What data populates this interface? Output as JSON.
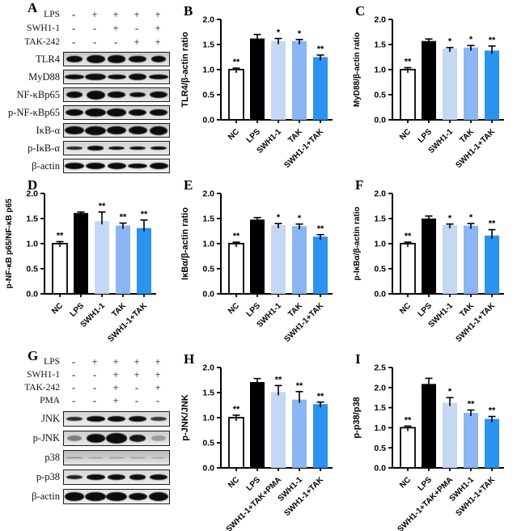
{
  "figure": {
    "background": "#ffffff",
    "bar_colors": [
      "#ffffff",
      "#000000",
      "#c4d7f3",
      "#8ab6f3",
      "#2b92ee"
    ],
    "axis_color": "#000000",
    "error_bar_color": "#000000"
  },
  "panels": {
    "A": {
      "letter": "A",
      "treatments": [
        {
          "label": "LPS",
          "signs": [
            "-",
            "+",
            "+",
            "+",
            "+"
          ]
        },
        {
          "label": "SWH1-1",
          "signs": [
            "-",
            "-",
            "+",
            "-",
            "+"
          ]
        },
        {
          "label": "TAK-242",
          "signs": [
            "-",
            "-",
            "-",
            "+",
            "+"
          ]
        }
      ],
      "blots": [
        {
          "label": "TLR4",
          "bg": "#c6c6c6",
          "bands": [
            [
              0.9,
              0.8,
              1
            ],
            [
              1,
              0.95,
              1
            ],
            [
              0.92,
              0.85,
              1
            ],
            [
              0.92,
              0.8,
              1
            ],
            [
              0.82,
              0.75,
              1
            ]
          ]
        },
        {
          "label": "MyD88",
          "bg": "#cfcfcf",
          "bands": [
            [
              1.08,
              0.62,
              1
            ],
            [
              1.12,
              0.78,
              1
            ],
            [
              1,
              0.58,
              1
            ],
            [
              0.95,
              0.8,
              1
            ],
            [
              1.02,
              0.58,
              1
            ]
          ]
        },
        {
          "label": "NF-κBp65",
          "bg": "#c9c9c9",
          "bands": [
            [
              0.9,
              0.72,
              1
            ],
            [
              1,
              1,
              1
            ],
            [
              0.95,
              0.68,
              1
            ],
            [
              0.9,
              0.6,
              1
            ],
            [
              0.95,
              0.72,
              1
            ]
          ]
        },
        {
          "label": "p-NF-κBp65",
          "bg": "#cccccc",
          "bands": [
            [
              0.95,
              0.72,
              1
            ],
            [
              1.12,
              0.95,
              1
            ],
            [
              1.05,
              0.85,
              1
            ],
            [
              0.95,
              0.72,
              1
            ],
            [
              0.95,
              0.78,
              1
            ]
          ]
        },
        {
          "label": "IκB-α",
          "bg": "#c4c4c4",
          "bands": [
            [
              1.05,
              0.95,
              1
            ],
            [
              1.12,
              1,
              1
            ],
            [
              1.05,
              0.95,
              1
            ],
            [
              1,
              0.9,
              1
            ],
            [
              0.95,
              1,
              1
            ]
          ]
        },
        {
          "label": "p-IκB-α",
          "bg": "#d2d2d2",
          "bands": [
            [
              0.9,
              0.32,
              0.9
            ],
            [
              0.9,
              0.5,
              1
            ],
            [
              0.85,
              0.4,
              1
            ],
            [
              0.85,
              0.4,
              1
            ],
            [
              0.85,
              0.45,
              1
            ]
          ]
        },
        {
          "label": "β-actin",
          "bg": "#e3e3e3",
          "bands": [
            [
              1.05,
              0.7,
              1
            ],
            [
              1.08,
              0.75,
              1
            ],
            [
              1,
              0.7,
              1
            ],
            [
              1.05,
              0.62,
              1
            ],
            [
              1,
              0.7,
              1
            ]
          ]
        }
      ]
    },
    "B": {
      "letter": "B",
      "chart_index": 0
    },
    "C": {
      "letter": "C",
      "chart_index": 1
    },
    "D": {
      "letter": "D",
      "chart_index": 2
    },
    "E": {
      "letter": "E",
      "chart_index": 3
    },
    "F": {
      "letter": "F",
      "chart_index": 4
    },
    "G": {
      "letter": "G",
      "treatments": [
        {
          "label": "LPS",
          "signs": [
            "-",
            "+",
            "+",
            "+",
            "+"
          ]
        },
        {
          "label": "SWH1-1",
          "signs": [
            "-",
            "-",
            "+",
            "+",
            "+"
          ]
        },
        {
          "label": "TAK-242",
          "signs": [
            "-",
            "-",
            "+",
            "-",
            "+"
          ]
        },
        {
          "label": "PMA",
          "signs": [
            "-",
            "-",
            "+",
            "-",
            "-"
          ]
        }
      ],
      "blots": [
        {
          "label": "JNK",
          "bg": "#d5d5d5",
          "bands": [
            [
              0.85,
              0.5,
              0.85
            ],
            [
              1,
              0.7,
              1
            ],
            [
              0.95,
              0.62,
              1
            ],
            [
              0.95,
              0.68,
              1
            ],
            [
              0.85,
              0.5,
              0.8
            ]
          ]
        },
        {
          "label": "p-JNK",
          "bg": "#cdcdcd",
          "bands": [
            [
              0.8,
              0.6,
              0.45
            ],
            [
              1,
              0.95,
              1
            ],
            [
              1.1,
              1.15,
              1
            ],
            [
              0.85,
              0.75,
              0.95
            ],
            [
              0.75,
              0.55,
              0.3
            ]
          ]
        },
        {
          "label": "p38",
          "bg": "#b8b8b8",
          "bands": [
            [
              0.95,
              0.18,
              0.55
            ],
            [
              0.85,
              0.14,
              0.4
            ],
            [
              0.88,
              0.16,
              0.45
            ],
            [
              0.85,
              0.14,
              0.42
            ],
            [
              0.82,
              0.14,
              0.35
            ]
          ]
        },
        {
          "label": "p-p38",
          "bg": "#d8d8d8",
          "bands": [
            [
              0.9,
              0.5,
              0.9
            ],
            [
              1,
              0.68,
              1
            ],
            [
              0.95,
              0.62,
              1
            ],
            [
              0.9,
              0.6,
              1
            ],
            [
              0.95,
              0.65,
              1
            ]
          ]
        },
        {
          "label": "β-actin",
          "bg": "#e0e0e0",
          "bands": [
            [
              1.05,
              0.95,
              1
            ],
            [
              1.1,
              1,
              1
            ],
            [
              1.12,
              1.05,
              1
            ],
            [
              1,
              0.85,
              1
            ],
            [
              1.05,
              1,
              1
            ]
          ]
        }
      ]
    },
    "H": {
      "letter": "H",
      "chart_index": 5
    },
    "I": {
      "letter": "I",
      "chart_index": 6
    }
  },
  "chart_data": [
    {
      "panel": "B",
      "type": "bar",
      "title": "",
      "ylabel": "TLR4/β-actin ratio",
      "xlabel": "",
      "categories": [
        "NC",
        "LPS",
        "SWH1-1",
        "TAK",
        "SWH1-1+TAK"
      ],
      "values": [
        1.0,
        1.62,
        1.57,
        1.57,
        1.25
      ],
      "errors": [
        0.03,
        0.08,
        0.05,
        0.03,
        0.04
      ],
      "sig": [
        "**",
        "",
        "*",
        "*",
        "**"
      ],
      "ylim": [
        0,
        2.0
      ],
      "yticks": [
        0,
        0.5,
        1.0,
        1.5,
        2.0
      ],
      "grid": false,
      "legend": "none"
    },
    {
      "panel": "C",
      "type": "bar",
      "title": "",
      "ylabel": "MyD88/β-actin ratio",
      "xlabel": "",
      "categories": [
        "NC",
        "LPS",
        "SWH1-1",
        "TAK",
        "SWH1-1+TAK"
      ],
      "values": [
        1.0,
        1.57,
        1.42,
        1.44,
        1.38
      ],
      "errors": [
        0.04,
        0.04,
        0.02,
        0.04,
        0.09
      ],
      "sig": [
        "**",
        "",
        "*",
        "*",
        "**"
      ],
      "ylim": [
        0,
        2.0
      ],
      "yticks": [
        0,
        0.5,
        1.0,
        1.5,
        2.0
      ],
      "grid": false,
      "legend": "none"
    },
    {
      "panel": "D",
      "type": "bar",
      "title": "",
      "ylabel": "p-NF-κB p65/NF-κB p65",
      "xlabel": "",
      "categories": [
        "NC",
        "LPS",
        "SWH1-1",
        "TAK",
        "SWH1-1+TAK"
      ],
      "values": [
        1.0,
        1.61,
        1.45,
        1.36,
        1.31
      ],
      "errors": [
        0.04,
        0.02,
        0.18,
        0.05,
        0.16
      ],
      "sig": [
        "**",
        "",
        "**",
        "**",
        "**"
      ],
      "ylim": [
        0,
        2.0
      ],
      "yticks": [
        0,
        0.5,
        1.0,
        1.5,
        2.0
      ],
      "grid": false,
      "legend": "none"
    },
    {
      "panel": "E",
      "type": "bar",
      "title": "",
      "ylabel": "IκBα/β-actin ratio",
      "xlabel": "",
      "categories": [
        "NC",
        "LPS",
        "SWH1-1",
        "TAK",
        "SWH1-1+TAK"
      ],
      "values": [
        1.0,
        1.48,
        1.37,
        1.35,
        1.14
      ],
      "errors": [
        0.03,
        0.04,
        0.03,
        0.04,
        0.04
      ],
      "sig": [
        "**",
        "",
        "*",
        "*",
        "**"
      ],
      "ylim": [
        0,
        2.0
      ],
      "yticks": [
        0,
        0.5,
        1.0,
        1.5,
        2.0
      ],
      "grid": false,
      "legend": "none"
    },
    {
      "panel": "F",
      "type": "bar",
      "title": "",
      "ylabel": "p-IκBα/β-actin ratio",
      "xlabel": "",
      "categories": [
        "NC",
        "LPS",
        "SWH1-1",
        "TAK",
        "SWH1-1+TAK"
      ],
      "values": [
        1.0,
        1.5,
        1.37,
        1.36,
        1.16
      ],
      "errors": [
        0.03,
        0.05,
        0.02,
        0.04,
        0.12
      ],
      "sig": [
        "**",
        "",
        "*",
        "*",
        "**"
      ],
      "ylim": [
        0,
        2.0
      ],
      "yticks": [
        0,
        0.5,
        1.0,
        1.5,
        2.0
      ],
      "grid": false,
      "legend": "none"
    },
    {
      "panel": "H",
      "type": "bar",
      "title": "",
      "ylabel": "p-JNK/JNK",
      "xlabel": "",
      "categories": [
        "NC",
        "LPS",
        "SWH1-1+TAK+PMA",
        "SWH1-1",
        "SWH1-1+TAK"
      ],
      "values": [
        1.0,
        1.71,
        1.51,
        1.36,
        1.27
      ],
      "errors": [
        0.05,
        0.07,
        0.13,
        0.16,
        0.04
      ],
      "sig": [
        "**",
        "",
        "**",
        "**",
        "**"
      ],
      "ylim": [
        0,
        2.0
      ],
      "yticks": [
        0,
        0.5,
        1.0,
        1.5,
        2.0
      ],
      "grid": false,
      "legend": "none"
    },
    {
      "panel": "I",
      "type": "bar",
      "title": "",
      "ylabel": "p-p38/p38",
      "xlabel": "",
      "categories": [
        "NC",
        "LPS",
        "SWH1-1+TAK+PMA",
        "SWH1-1",
        "SWH1-1+TAK"
      ],
      "values": [
        1.0,
        2.09,
        1.62,
        1.37,
        1.22
      ],
      "errors": [
        0.04,
        0.14,
        0.13,
        0.07,
        0.06
      ],
      "sig": [
        "**",
        "",
        "*",
        "**",
        "**"
      ],
      "ylim": [
        0,
        2.5
      ],
      "yticks": [
        0,
        0.5,
        1.0,
        1.5,
        2.0,
        2.5
      ],
      "grid": false,
      "legend": "none"
    }
  ]
}
